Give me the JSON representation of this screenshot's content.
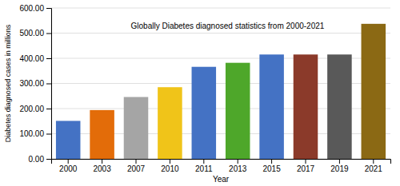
{
  "chart_data": {
    "type": "bar",
    "categories": [
      "2000",
      "2003",
      "2007",
      "2010",
      "2011",
      "2013",
      "2015",
      "2017",
      "2019",
      "2021"
    ],
    "values": [
      151,
      194,
      246,
      285,
      366,
      382,
      415,
      415,
      415,
      537
    ],
    "colors": [
      "#4472C4",
      "#E36C09",
      "#A5A5A5",
      "#F0C419",
      "#4472C4",
      "#4EA72A",
      "#4472C4",
      "#8B3A2A",
      "#595959",
      "#8B6914"
    ],
    "xlabel": "Year",
    "ylabel": "Diabetes diagnosed cases in millions",
    "annotation": "Globally Diabetes diagnosed statistics from 2000-2021",
    "ylim": [
      0,
      600
    ],
    "yticks": [
      {
        "value": 0,
        "label": "0.00"
      },
      {
        "value": 100,
        "label": "100.00"
      },
      {
        "value": 200,
        "label": "200.00"
      },
      {
        "value": 300,
        "label": "300.00"
      },
      {
        "value": 400,
        "label": "400.00"
      },
      {
        "value": 500,
        "label": "500.00"
      },
      {
        "value": 600,
        "label": "600.00"
      }
    ],
    "grid": true
  }
}
